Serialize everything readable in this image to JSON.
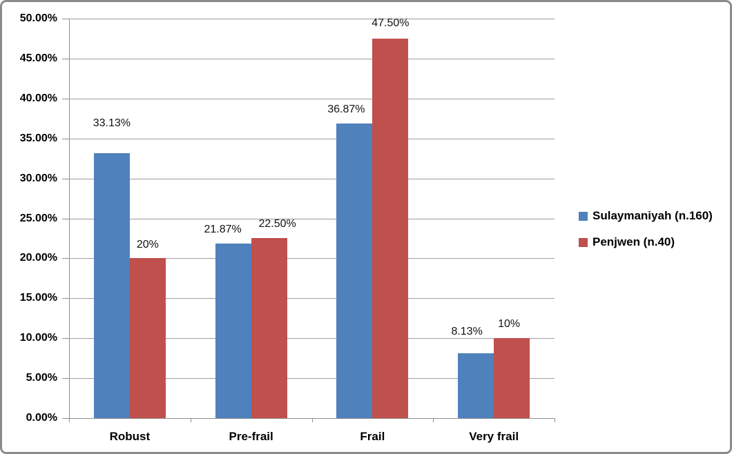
{
  "chart_data": {
    "type": "bar",
    "title": "",
    "xlabel": "",
    "ylabel": "",
    "categories": [
      "Robust",
      "Pre-frail",
      "Frail",
      "Very frail"
    ],
    "series": [
      {
        "name": "Sulaymaniyah (n.160)",
        "color": "#4F81BD",
        "values": [
          33.13,
          21.87,
          36.87,
          8.13
        ],
        "value_labels": [
          "33.13%",
          "21.87%",
          "36.87%",
          "8.13%"
        ]
      },
      {
        "name": "Penjwen (n.40)",
        "color": "#C0504D",
        "values": [
          20,
          22.5,
          47.5,
          10
        ],
        "value_labels": [
          "20%",
          "22.50%",
          "47.50%",
          "10%"
        ]
      }
    ],
    "ylim": [
      0,
      50
    ],
    "ytick_step": 5,
    "ytick_labels": [
      "0.00%",
      "5.00%",
      "10.00%",
      "15.00%",
      "20.00%",
      "25.00%",
      "30.00%",
      "35.00%",
      "40.00%",
      "45.00%",
      "50.00%"
    ],
    "grid": true,
    "legend_position": "right",
    "colors": {
      "gridline": "#9C9C9C",
      "axis": "#8E8E8E",
      "chart_border": "#8A8A8A",
      "data_label": "#111111",
      "tick_label": "#000000"
    }
  }
}
